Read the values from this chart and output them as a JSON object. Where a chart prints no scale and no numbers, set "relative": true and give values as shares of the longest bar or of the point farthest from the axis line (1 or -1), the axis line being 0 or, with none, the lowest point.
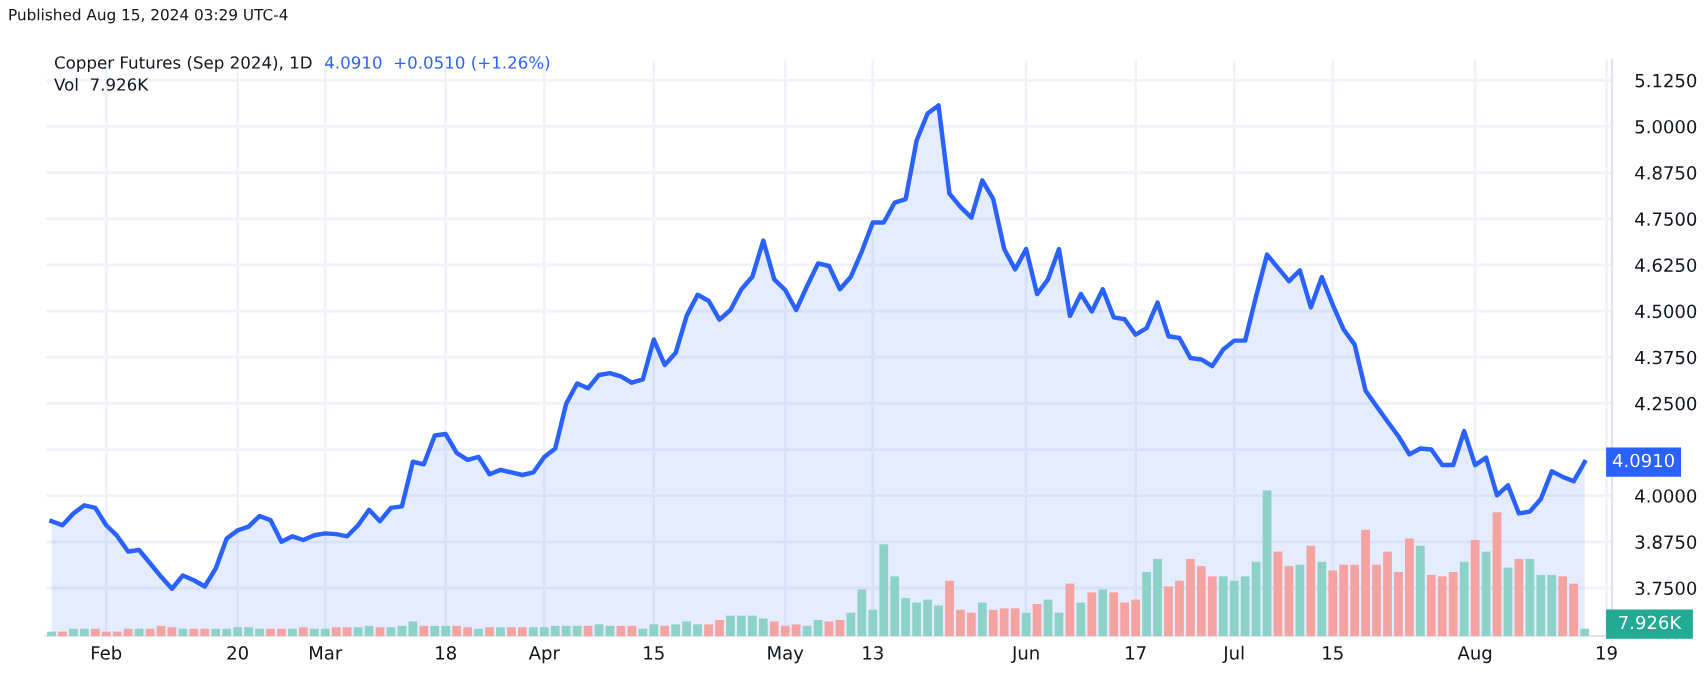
{
  "chart_data": [
    {
      "type": "area",
      "title": "Copper Futures (Sep 2024), 1D",
      "annotations": [
        "Published Aug 15, 2024 03:29 UTC-4",
        "4.0910  +0.0510 (+1.26%)",
        "Vol  7.926K",
        {
          "text": "4.0910",
          "y": 4.091
        }
      ],
      "categories": [
        null,
        null,
        null,
        null,
        null,
        "Feb",
        null,
        null,
        null,
        null,
        null,
        null,
        null,
        null,
        null,
        null,
        null,
        "20",
        null,
        null,
        null,
        null,
        null,
        null,
        null,
        "Mar",
        null,
        null,
        null,
        null,
        null,
        null,
        null,
        null,
        null,
        null,
        "18",
        null,
        null,
        null,
        null,
        null,
        null,
        null,
        null,
        "Apr",
        null,
        null,
        null,
        null,
        null,
        null,
        null,
        null,
        null,
        "15",
        null,
        null,
        null,
        null,
        null,
        null,
        null,
        null,
        null,
        null,
        null,
        "May",
        null,
        null,
        null,
        null,
        null,
        null,
        null,
        "13",
        null,
        null,
        null,
        null,
        null,
        null,
        null,
        null,
        null,
        null,
        null,
        null,
        null,
        "Jun",
        null,
        null,
        null,
        null,
        null,
        null,
        null,
        null,
        null,
        "17",
        null,
        null,
        null,
        null,
        null,
        null,
        null,
        null,
        "Jul",
        null,
        null,
        null,
        null,
        null,
        null,
        null,
        null,
        "15",
        null,
        null,
        null,
        null,
        null,
        null,
        null,
        null,
        null,
        null,
        null,
        null,
        "Aug",
        null,
        null,
        null,
        null,
        null,
        null,
        null,
        null,
        null,
        null,
        null,
        "19"
      ],
      "series": [
        {
          "color": "#2962ff",
          "values": [
            3.931,
            3.92,
            3.952,
            3.974,
            3.967,
            3.92,
            3.891,
            3.849,
            3.853,
            3.817,
            3.781,
            3.748,
            3.784,
            3.771,
            3.754,
            3.803,
            3.884,
            3.906,
            3.916,
            3.945,
            3.934,
            3.875,
            3.89,
            3.88,
            3.893,
            3.898,
            3.896,
            3.89,
            3.92,
            3.962,
            3.931,
            3.967,
            3.971,
            4.092,
            4.085,
            4.163,
            4.167,
            4.116,
            4.097,
            4.105,
            4.058,
            4.07,
            4.063,
            4.056,
            4.063,
            4.105,
            4.128,
            4.249,
            4.304,
            4.291,
            4.327,
            4.332,
            4.323,
            4.306,
            4.315,
            4.423,
            4.354,
            4.387,
            4.487,
            4.544,
            4.528,
            4.477,
            4.503,
            4.559,
            4.593,
            4.691,
            4.586,
            4.557,
            4.503,
            4.568,
            4.629,
            4.622,
            4.559,
            4.593,
            4.662,
            4.74,
            4.74,
            4.794,
            4.803,
            4.962,
            5.035,
            5.057,
            4.818,
            4.782,
            4.753,
            4.854,
            4.803,
            4.668,
            4.613,
            4.668,
            4.546,
            4.586,
            4.668,
            4.487,
            4.546,
            4.499,
            4.559,
            4.483,
            4.478,
            4.436,
            4.454,
            4.523,
            4.432,
            4.427,
            4.373,
            4.369,
            4.351,
            4.396,
            4.42,
            4.42,
            4.54,
            4.653,
            4.617,
            4.581,
            4.61,
            4.51,
            4.592,
            4.517,
            4.45,
            4.409,
            4.284,
            4.242,
            4.201,
            4.161,
            4.112,
            4.128,
            4.125,
            4.083,
            4.083,
            4.175,
            4.083,
            4.103,
            4.001,
            4.028,
            3.952,
            3.957,
            3.991,
            4.066,
            4.051,
            4.039,
            4.091,
            null,
            null
          ]
        }
      ],
      "ylim": [
        3.62,
        5.18
      ],
      "yticks": [
        {
          "value": 3.75,
          "label": "3.7500"
        },
        {
          "value": 3.875,
          "label": "3.8750"
        },
        {
          "value": 4.0,
          "label": "4.0000"
        },
        {
          "value": 4.125,
          "label": null
        },
        {
          "value": 4.25,
          "label": "4.2500"
        },
        {
          "value": 4.375,
          "label": "4.3750"
        },
        {
          "value": 4.5,
          "label": "4.5000"
        },
        {
          "value": 4.625,
          "label": "4.6250"
        },
        {
          "value": 4.75,
          "label": "4.7500"
        },
        {
          "value": 4.875,
          "label": "4.8750"
        },
        {
          "value": 5.0,
          "label": "5.0000"
        },
        {
          "value": 5.125,
          "label": "5.1250"
        }
      ],
      "grid": true
    },
    {
      "type": "bar",
      "relative": true,
      "annotations": [
        "7.926K"
      ],
      "categories": [
        null,
        null,
        null,
        null,
        null,
        null,
        null,
        null,
        null,
        null,
        null,
        null,
        null,
        null,
        null,
        null,
        null,
        null,
        null,
        null,
        null,
        null,
        null,
        null,
        null,
        null,
        null,
        null,
        null,
        null,
        null,
        null,
        null,
        null,
        null,
        null,
        null,
        null,
        null,
        null,
        null,
        null,
        null,
        null,
        null,
        null,
        null,
        null,
        null,
        null,
        null,
        null,
        null,
        null,
        null,
        null,
        null,
        null,
        null,
        null,
        null,
        null,
        null,
        null,
        null,
        null,
        null,
        null,
        null,
        null,
        null,
        null,
        null,
        null,
        null,
        null,
        null,
        null,
        null,
        null,
        null,
        null,
        null,
        null,
        null,
        null,
        null,
        null,
        null,
        null,
        null,
        null,
        null,
        null,
        null,
        null,
        null,
        null,
        null,
        null,
        null,
        null,
        null,
        null,
        null,
        null,
        null,
        null,
        null,
        null,
        null,
        null,
        null,
        null,
        null,
        null,
        null,
        null,
        null,
        null,
        null,
        null,
        null,
        null,
        null,
        null,
        null,
        null,
        null,
        null,
        null,
        null,
        null,
        null,
        null,
        null,
        null,
        null,
        null,
        null,
        null
      ],
      "values": [
        0.03,
        0.03,
        0.05,
        0.05,
        0.05,
        0.03,
        0.03,
        0.05,
        0.05,
        0.05,
        0.07,
        0.06,
        0.05,
        0.05,
        0.05,
        0.05,
        0.05,
        0.06,
        0.06,
        0.05,
        0.05,
        0.05,
        0.05,
        0.06,
        0.05,
        0.05,
        0.06,
        0.06,
        0.06,
        0.07,
        0.06,
        0.06,
        0.07,
        0.1,
        0.07,
        0.07,
        0.07,
        0.07,
        0.06,
        0.05,
        0.06,
        0.06,
        0.06,
        0.06,
        0.06,
        0.06,
        0.07,
        0.07,
        0.07,
        0.07,
        0.08,
        0.07,
        0.07,
        0.07,
        0.05,
        0.08,
        0.07,
        0.08,
        0.1,
        0.08,
        0.08,
        0.11,
        0.14,
        0.14,
        0.14,
        0.12,
        0.1,
        0.07,
        0.08,
        0.07,
        0.11,
        0.1,
        0.11,
        0.16,
        0.32,
        0.18,
        0.63,
        0.41,
        0.26,
        0.23,
        0.25,
        0.21,
        0.38,
        0.18,
        0.16,
        0.23,
        0.18,
        0.19,
        0.19,
        0.16,
        0.22,
        0.25,
        0.16,
        0.36,
        0.23,
        0.3,
        0.32,
        0.3,
        0.23,
        0.25,
        0.44,
        0.53,
        0.34,
        0.38,
        0.53,
        0.48,
        0.41,
        0.41,
        0.38,
        0.41,
        0.51,
        1,
        0.58,
        0.48,
        0.49,
        0.62,
        0.51,
        0.45,
        0.49,
        0.49,
        0.73,
        0.49,
        0.58,
        0.44,
        0.67,
        0.62,
        0.42,
        0.41,
        0.44,
        0.51,
        0.66,
        0.58,
        0.85,
        0.47,
        0.53,
        0.53,
        0.42,
        0.42,
        0.41,
        0.36,
        0.05
      ],
      "colors": [
        "#8dd2c7",
        "#f4a3a1",
        "#8dd2c7",
        "#8dd2c7",
        "#f4a3a1",
        "#f4a3a1",
        "#f4a3a1",
        "#f4a3a1",
        "#8dd2c7",
        "#f4a3a1",
        "#f4a3a1",
        "#f4a3a1",
        "#8dd2c7",
        "#f4a3a1",
        "#f4a3a1",
        "#8dd2c7",
        "#8dd2c7",
        "#8dd2c7",
        "#8dd2c7",
        "#8dd2c7",
        "#f4a3a1",
        "#f4a3a1",
        "#8dd2c7",
        "#f4a3a1",
        "#8dd2c7",
        "#8dd2c7",
        "#f4a3a1",
        "#f4a3a1",
        "#8dd2c7",
        "#8dd2c7",
        "#f4a3a1",
        "#8dd2c7",
        "#8dd2c7",
        "#8dd2c7",
        "#f4a3a1",
        "#8dd2c7",
        "#8dd2c7",
        "#f4a3a1",
        "#f4a3a1",
        "#8dd2c7",
        "#f4a3a1",
        "#8dd2c7",
        "#f4a3a1",
        "#f4a3a1",
        "#8dd2c7",
        "#8dd2c7",
        "#8dd2c7",
        "#8dd2c7",
        "#8dd2c7",
        "#f4a3a1",
        "#8dd2c7",
        "#8dd2c7",
        "#f4a3a1",
        "#f4a3a1",
        "#8dd2c7",
        "#8dd2c7",
        "#f4a3a1",
        "#8dd2c7",
        "#8dd2c7",
        "#8dd2c7",
        "#f4a3a1",
        "#f4a3a1",
        "#8dd2c7",
        "#8dd2c7",
        "#8dd2c7",
        "#8dd2c7",
        "#f4a3a1",
        "#f4a3a1",
        "#f4a3a1",
        "#8dd2c7",
        "#8dd2c7",
        "#f4a3a1",
        "#f4a3a1",
        "#8dd2c7",
        "#8dd2c7",
        "#8dd2c7",
        "#8dd2c7",
        "#8dd2c7",
        "#8dd2c7",
        "#8dd2c7",
        "#8dd2c7",
        "#8dd2c7",
        "#f4a3a1",
        "#f4a3a1",
        "#f4a3a1",
        "#8dd2c7",
        "#f4a3a1",
        "#f4a3a1",
        "#f4a3a1",
        "#8dd2c7",
        "#f4a3a1",
        "#8dd2c7",
        "#8dd2c7",
        "#f4a3a1",
        "#8dd2c7",
        "#f4a3a1",
        "#8dd2c7",
        "#f4a3a1",
        "#f4a3a1",
        "#f4a3a1",
        "#8dd2c7",
        "#8dd2c7",
        "#f4a3a1",
        "#f4a3a1",
        "#f4a3a1",
        "#f4a3a1",
        "#f4a3a1",
        "#8dd2c7",
        "#8dd2c7",
        "#8dd2c7",
        "#8dd2c7",
        "#8dd2c7",
        "#f4a3a1",
        "#f4a3a1",
        "#8dd2c7",
        "#f4a3a1",
        "#8dd2c7",
        "#f4a3a1",
        "#f4a3a1",
        "#f4a3a1",
        "#f4a3a1",
        "#f4a3a1",
        "#f4a3a1",
        "#f4a3a1",
        "#f4a3a1",
        "#8dd2c7",
        "#f4a3a1",
        "#f4a3a1",
        "#f4a3a1",
        "#8dd2c7",
        "#f4a3a1",
        "#8dd2c7",
        "#f4a3a1",
        "#8dd2c7",
        "#f4a3a1",
        "#8dd2c7",
        "#8dd2c7",
        "#8dd2c7",
        "#f4a3a1",
        "#f4a3a1",
        "#8dd2c7"
      ]
    }
  ]
}
